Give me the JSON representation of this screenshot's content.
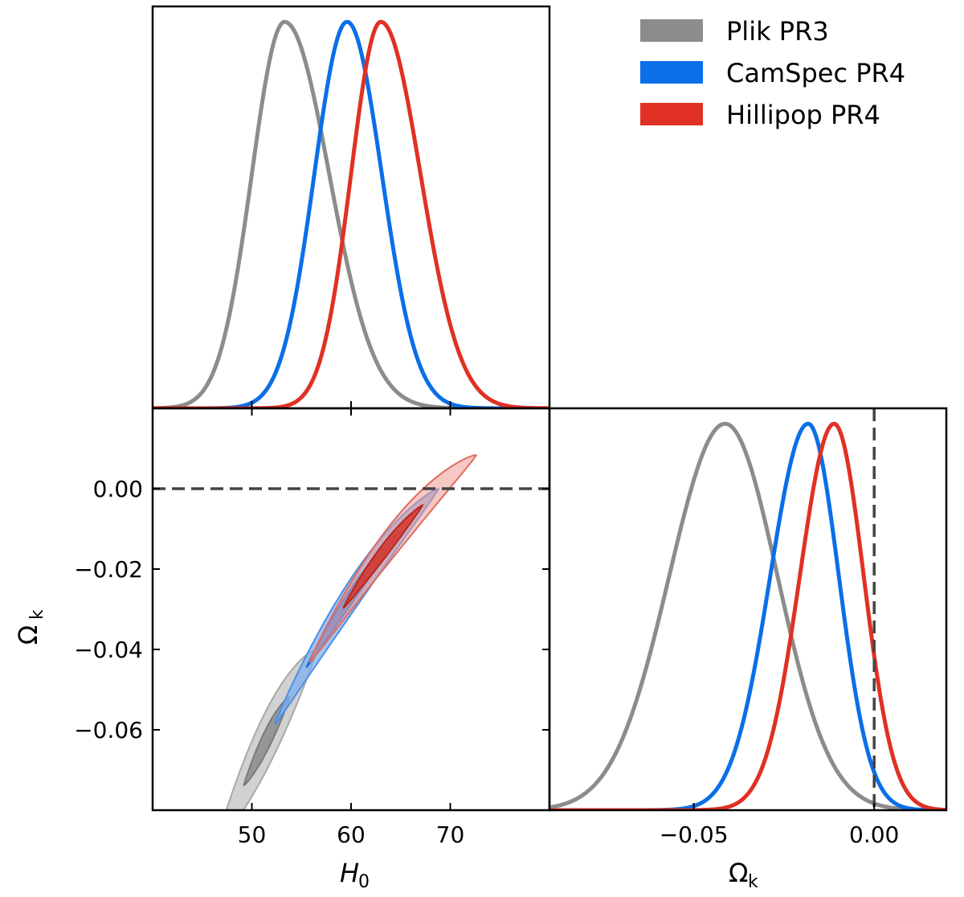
{
  "colors": {
    "plik": "#8c8c8c",
    "camspec": "#0a6fe8",
    "hillipop": "#e03124",
    "ref": "#444444",
    "frame": "#000000"
  },
  "legend": [
    {
      "name": "Plik PR3",
      "color": "#8c8c8c"
    },
    {
      "name": "CamSpec PR4",
      "color": "#0a6fe8"
    },
    {
      "name": "Hillipop PR4",
      "color": "#e03124"
    }
  ],
  "chart_data": [
    {
      "id": "h0-1d",
      "type": "line",
      "title": "",
      "xlabel": "",
      "ylabel": "",
      "xlim": [
        40,
        80
      ],
      "ylim": [
        0,
        1.04
      ],
      "series": [
        {
          "name": "Plik PR3",
          "mean": 53.3,
          "sigma_left": 3.3,
          "sigma_right": 4.5
        },
        {
          "name": "CamSpec PR4",
          "mean": 59.6,
          "sigma_left": 3.3,
          "sigma_right": 3.5
        },
        {
          "name": "Hillipop PR4",
          "mean": 63.0,
          "sigma_left": 3.0,
          "sigma_right": 4.0
        }
      ]
    },
    {
      "id": "h0-omegak-2d",
      "type": "scatter",
      "xlabel": "H_0",
      "ylabel": "Ω_k",
      "xlim": [
        40,
        80
      ],
      "ylim": [
        -0.08,
        0.02
      ],
      "x_ticks": [
        50,
        60,
        70
      ],
      "x_tick_labels": [
        "50",
        "60",
        "70"
      ],
      "y_ticks": [
        0.0,
        -0.02,
        -0.04,
        -0.06
      ],
      "y_tick_labels": [
        "0.00",
        "−0.02",
        "−0.04",
        "−0.06"
      ],
      "reference_line_y": 0.0,
      "series": [
        {
          "name": "Plik PR3",
          "degeneracy": "Ω_k ≈ -0.0202 - 0.00336·(H0-62) + 0.0000667·(H0-62)^2",
          "h0_range_2sigma": [
            47.5,
            56.0
          ],
          "h0_range_1sigma": [
            49.5,
            53.5
          ]
        },
        {
          "name": "CamSpec PR4",
          "h0_range_2sigma": [
            52.5,
            68.5
          ],
          "h0_range_1sigma": [
            55.5,
            64.5
          ]
        },
        {
          "name": "Hillipop PR4",
          "h0_range_2sigma": [
            55.8,
            72.5
          ],
          "h0_range_1sigma": [
            59.5,
            67.0
          ]
        }
      ]
    },
    {
      "id": "omegak-1d",
      "type": "line",
      "xlabel": "Ω_k",
      "ylabel": "",
      "xlim": [
        -0.09,
        0.02
      ],
      "ylim": [
        0,
        1.04
      ],
      "x_ticks": [
        -0.05,
        0.0
      ],
      "x_tick_labels": [
        "−0.05",
        "0.00"
      ],
      "reference_line_x": 0.0,
      "series": [
        {
          "name": "Plik PR3",
          "mean": -0.0413,
          "sigma_left": 0.0155,
          "sigma_right": 0.0145
        },
        {
          "name": "CamSpec PR4",
          "mean": -0.0183,
          "sigma_left": 0.0105,
          "sigma_right": 0.0085
        },
        {
          "name": "Hillipop PR4",
          "mean": -0.0111,
          "sigma_left": 0.0095,
          "sigma_right": 0.0082
        }
      ]
    }
  ]
}
